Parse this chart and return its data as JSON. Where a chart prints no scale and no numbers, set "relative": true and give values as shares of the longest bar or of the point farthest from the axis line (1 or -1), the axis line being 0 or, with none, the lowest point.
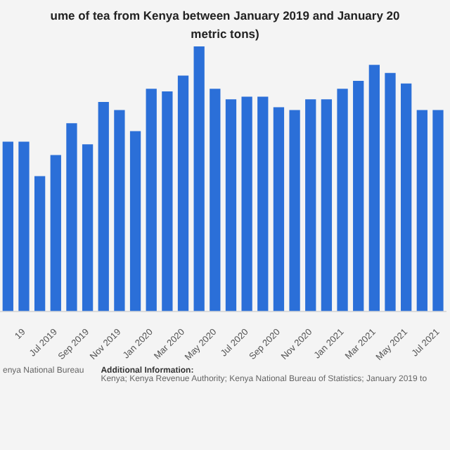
{
  "chart_data": {
    "type": "bar",
    "title": "ume of tea from Kenya between January 2019 and January 20",
    "subtitle": "metric tons)",
    "relative": true,
    "color": "#2b6fd8",
    "categories": [
      null,
      "19",
      null,
      "Jul 2019",
      null,
      "Sep 2019",
      null,
      "Nov 2019",
      null,
      "Jan 2020",
      null,
      "Mar 2020",
      null,
      "May 2020",
      null,
      "Jul 2020",
      null,
      "Sep 2020",
      null,
      "Nov 2020",
      null,
      "Jan 2021",
      null,
      "Mar 2021",
      null,
      "May 2021",
      null,
      "Jul 2021"
    ],
    "values": [
      0.64,
      0.64,
      0.51,
      0.59,
      0.71,
      0.63,
      0.79,
      0.76,
      0.68,
      0.84,
      0.83,
      0.89,
      1,
      0.84,
      0.8,
      0.81,
      0.81,
      0.77,
      0.76,
      0.8,
      0.8,
      0.84,
      0.87,
      0.93,
      0.9,
      0.86,
      0.76,
      0.76
    ],
    "annotations": [
      "enya National Bureau",
      "Additional Information:",
      "Kenya; Kenya Revenue Authority; Kenya National Bureau of Statistics; January 2019 to"
    ]
  }
}
